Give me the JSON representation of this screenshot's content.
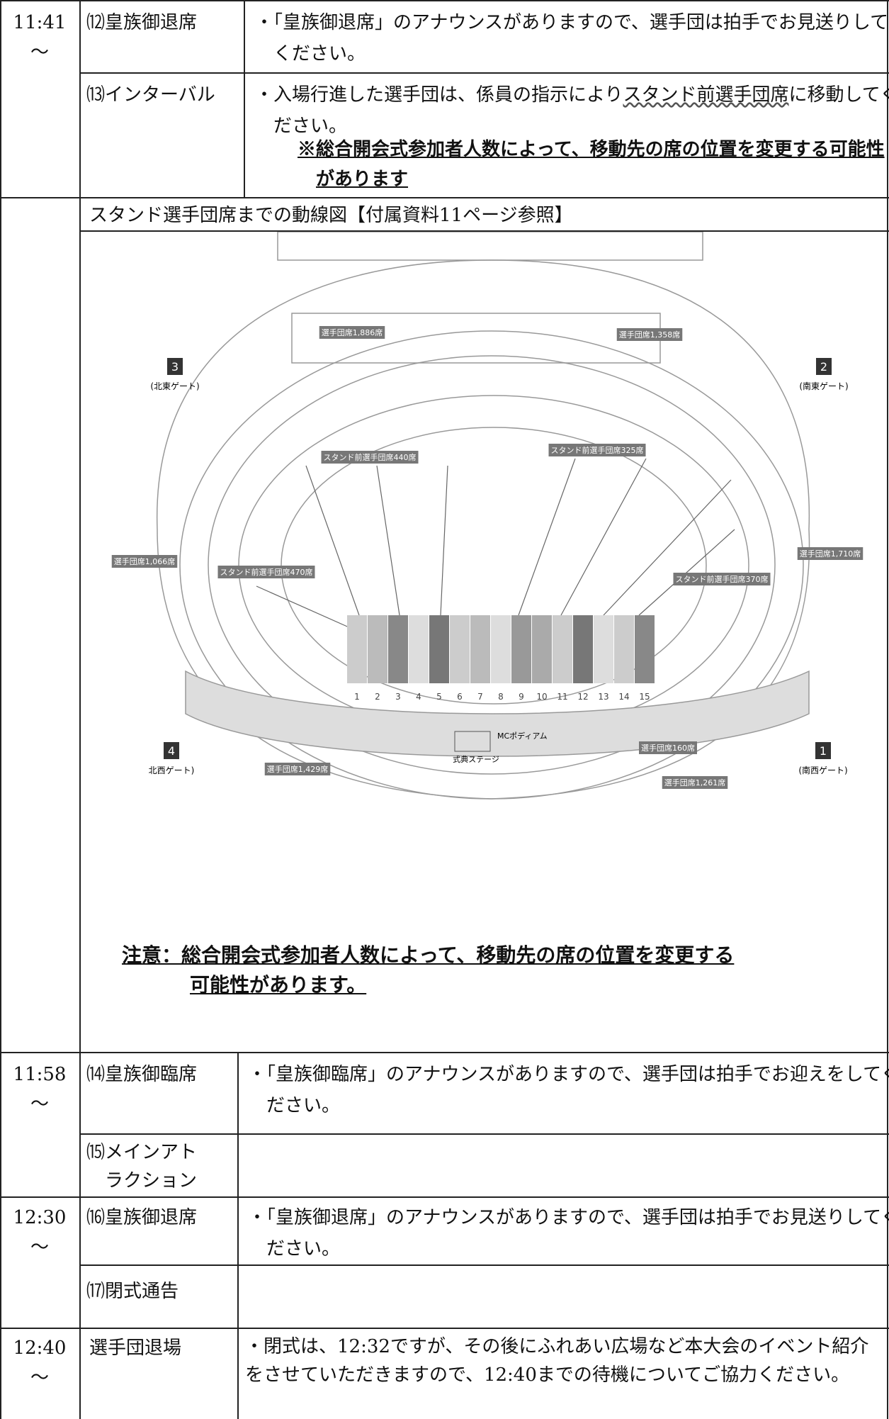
{
  "rows": [
    {
      "time": "11:41",
      "time_sub": "〜",
      "item": "⑿皇族御退席",
      "desc": "・「皇族御退席」のアナウンスがありますので、選手団は拍手でお見送りしてください。"
    },
    {
      "item": "⒀インターバル",
      "desc_parts": [
        "・入場行進した選手団は、係員の指示により",
        "スタンド前選手団席",
        "に移動してください。"
      ],
      "note": "※総合開会式参加者人数によって、移動先の席の位置を変更する可能性があります"
    }
  ],
  "diagram": {
    "header": "スタンド選手団席までの動線図【付属資料11ページ参照】",
    "gates": [
      {
        "number": "3",
        "label": "(北東ゲート)"
      },
      {
        "number": "2",
        "label": "(南東ゲート)"
      },
      {
        "number": "4",
        "label": "北西ゲート)"
      },
      {
        "number": "1",
        "label": "(南西ゲート)"
      }
    ],
    "seats": [
      "選手団席1,886席",
      "選手団席1,358席",
      "スタンド前選手団席440席",
      "スタンド前選手団席325席",
      "選手団席1,066席",
      "スタンド前選手団席470席",
      "選手団席1,710席",
      "スタンド前選手団席370席",
      "選手団席160席",
      "選手団席1,429席",
      "選手団席1,261席"
    ],
    "stage_labels": [
      "MCポディアム",
      "式典ステージ"
    ],
    "block_labels": [
      "1",
      "2",
      "3",
      "4",
      "5",
      "6",
      "7",
      "8",
      "9",
      "10",
      "11",
      "12",
      "13",
      "14",
      "15"
    ],
    "caution": [
      "注意：総合開会式参加者人数によって、移動先の席の位置を変更する",
      "可能性があります。"
    ]
  },
  "rows_after": [
    {
      "time": "11:58",
      "time_sub": "〜",
      "item": "⒁皇族御臨席",
      "desc": "・「皇族御臨席」のアナウンスがありますので、選手団は拍手でお迎えをしてください。"
    },
    {
      "item_lines": [
        "⒂メインアト",
        "ラクション"
      ]
    },
    {
      "time": "12:30",
      "time_sub": "〜",
      "item": "⒃皇族御退席",
      "desc": "・「皇族御退席」のアナウンスがありますので、選手団は拍手でお見送りしてください。"
    },
    {
      "item": "⒄閉式通告"
    },
    {
      "time": "12:40",
      "time_sub": "〜",
      "item": "選手団退場",
      "desc": "・閉式は、12:32ですが、その後にふれあい広場など本大会のイベント紹介をさせていただきますので、12:40までの待機についてご協力ください。"
    }
  ]
}
